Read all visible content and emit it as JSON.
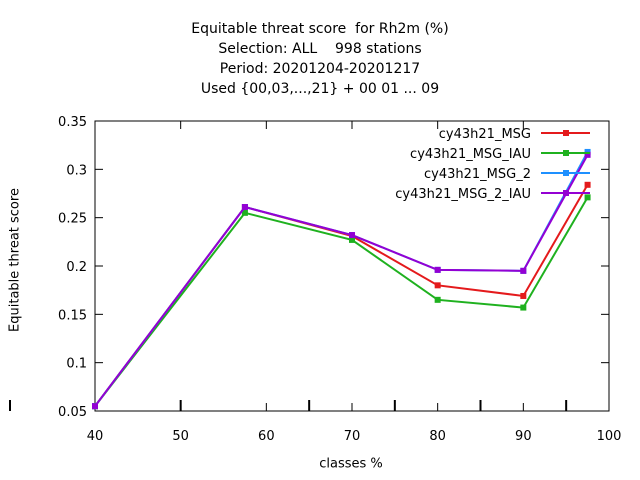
{
  "chart_data": {
    "type": "line",
    "title_lines": [
      "Equitable threat score  for Rh2m (%)",
      "Selection: ALL    998 stations",
      "Period: 20201204-20201217",
      "Used {00,03,...,21} + 00 01 ... 09"
    ],
    "xlabel": "classes %",
    "ylabel": "Equitable threat score",
    "xlim": [
      40,
      100
    ],
    "ylim": [
      0.05,
      0.35
    ],
    "x_ticks": [
      40,
      50,
      60,
      70,
      80,
      90,
      100
    ],
    "y_ticks": [
      0.05,
      0.1,
      0.15,
      0.2,
      0.25,
      0.3,
      0.35
    ],
    "y_tick_labels": [
      "0.05",
      "0.1",
      "0.15",
      "0.2",
      "0.25",
      "0.3",
      "0.35"
    ],
    "grid": false,
    "legend_position": "top-right",
    "x": [
      40,
      57.5,
      70,
      80,
      90,
      97.5
    ],
    "series": [
      {
        "name": "cy43h21_MSG",
        "color": "#e41a1c",
        "values": [
          0.055,
          0.261,
          0.231,
          0.18,
          0.169,
          0.284
        ]
      },
      {
        "name": "cy43h21_MSG_IAU",
        "color": "#1fb11f",
        "values": [
          0.055,
          0.255,
          0.227,
          0.165,
          0.157,
          0.271
        ]
      },
      {
        "name": "cy43h21_MSG_2",
        "color": "#1e90ff",
        "values": [
          0.055,
          0.261,
          0.232,
          0.196,
          0.195,
          0.318
        ]
      },
      {
        "name": "cy43h21_MSG_2_IAU",
        "color": "#9400d3",
        "values": [
          0.055,
          0.261,
          0.232,
          0.196,
          0.195,
          0.315
        ]
      }
    ]
  }
}
